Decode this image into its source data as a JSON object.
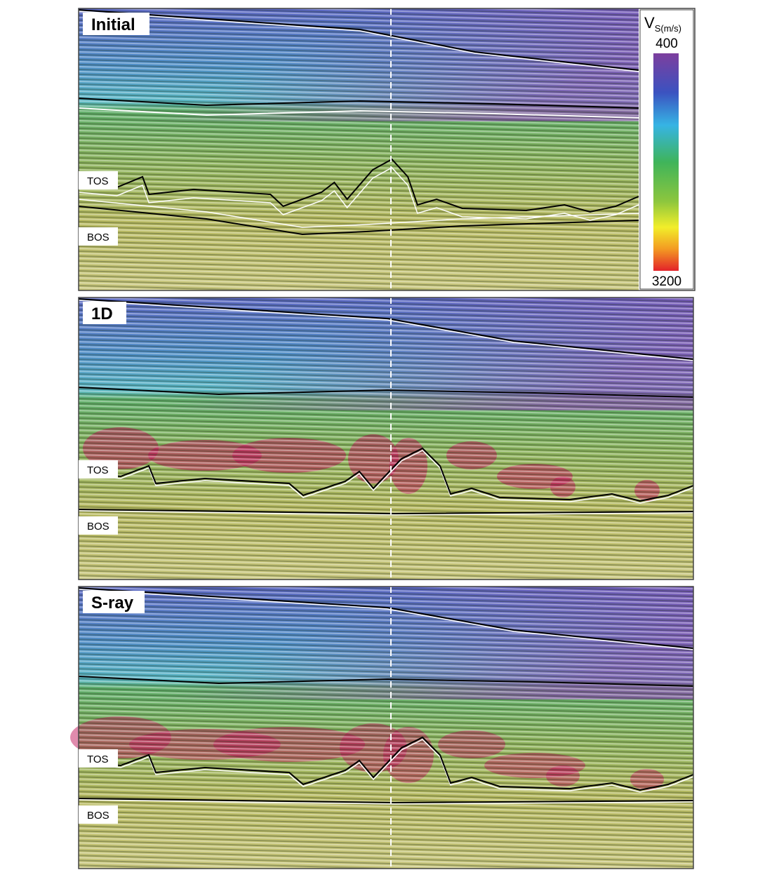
{
  "panels": [
    {
      "label": "Initial",
      "tos": "TOS",
      "bos": "BOS"
    },
    {
      "label": "1D",
      "tos": "TOS",
      "bos": "BOS"
    },
    {
      "label": "S-ray",
      "tos": "TOS",
      "bos": "BOS"
    }
  ],
  "colorbar": {
    "title_main": "V",
    "title_sub": "S(m/s)",
    "top_label": "400",
    "bottom_label": "3200"
  }
}
